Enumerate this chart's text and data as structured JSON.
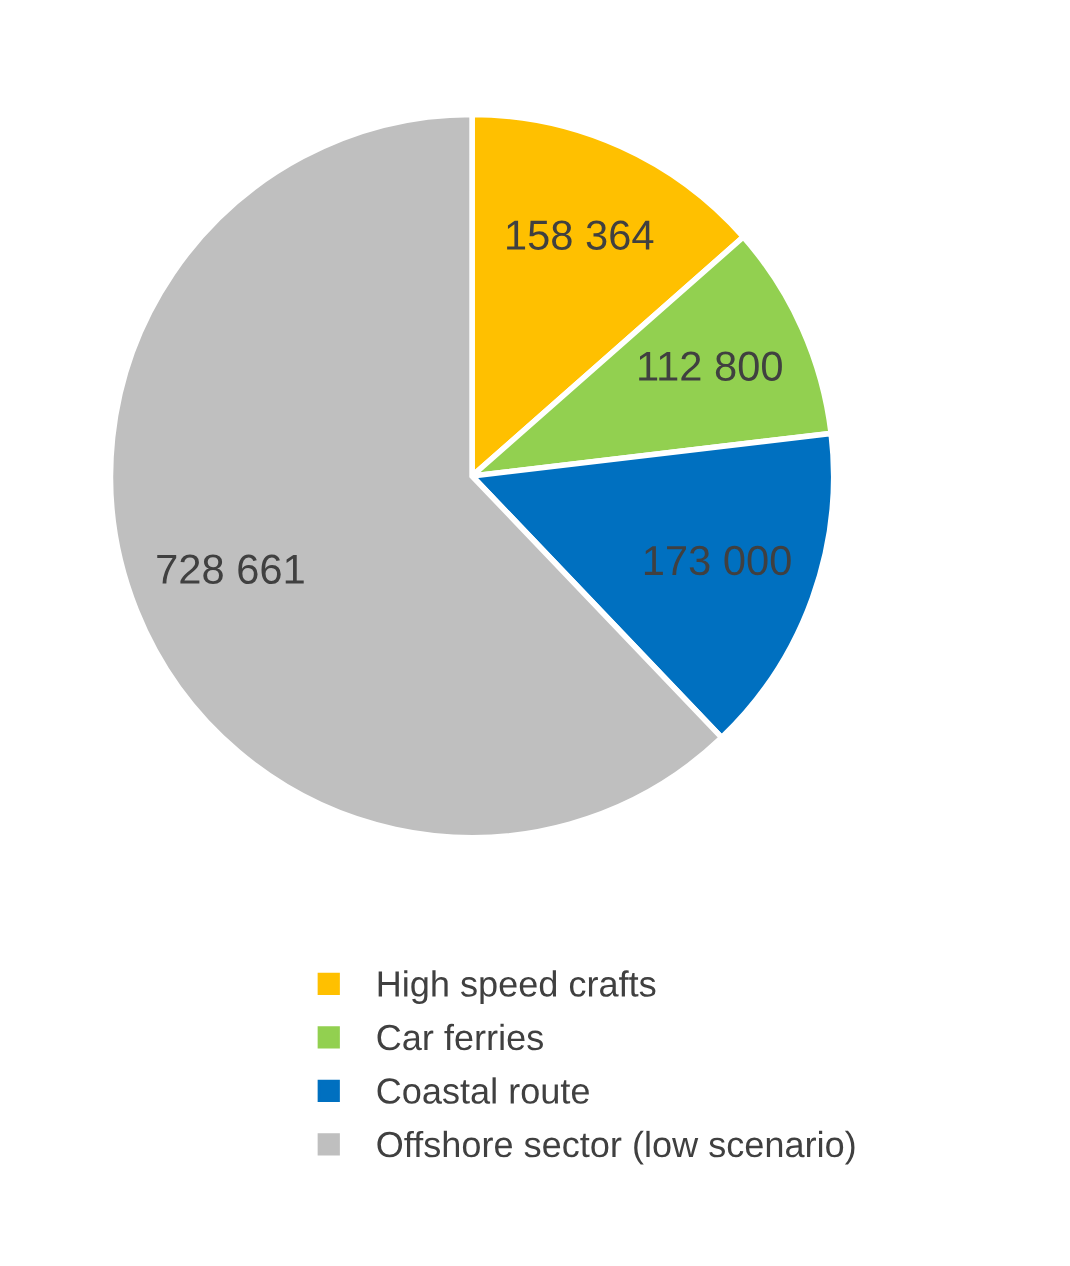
{
  "chart_data": {
    "type": "pie",
    "categories": [
      "High speed crafts",
      "Car ferries",
      "Coastal route",
      "Offshore sector (low scenario)"
    ],
    "values": [
      158364,
      112800,
      173000,
      728661
    ],
    "value_labels": [
      "158 364",
      "112 800",
      "173 000",
      "728 661"
    ],
    "colors": [
      "#ffc000",
      "#92d050",
      "#0070c0",
      "#bfbfbf"
    ],
    "legend": "bottom"
  }
}
